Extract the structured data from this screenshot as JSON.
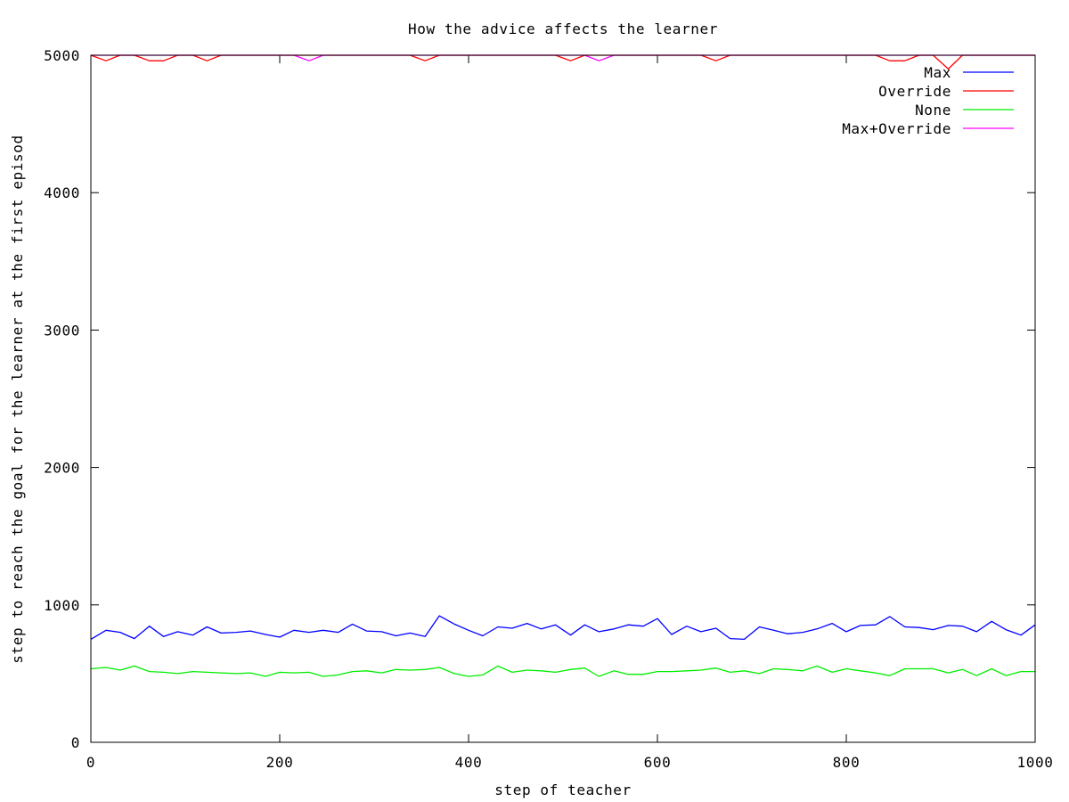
{
  "chart_data": {
    "type": "line",
    "title": "How the advice affects the learner",
    "xlabel": "step of teacher",
    "ylabel": "step to reach the goal for the learner at the first episod",
    "xlim": [
      0,
      1000
    ],
    "ylim": [
      0,
      5000
    ],
    "x_ticks": [
      0,
      200,
      400,
      600,
      800,
      1000
    ],
    "y_ticks": [
      0,
      1000,
      2000,
      3000,
      4000,
      5000
    ],
    "x_tick_labels": [
      "0",
      "200",
      "400",
      "600",
      "800",
      "1000"
    ],
    "y_tick_labels": [
      "0",
      "1000",
      "2000",
      "3000",
      "4000",
      "5000"
    ],
    "grid": false,
    "legend_position": "top-right",
    "x": [
      0,
      16,
      31,
      46,
      62,
      77,
      92,
      108,
      123,
      138,
      154,
      169,
      185,
      200,
      215,
      231,
      246,
      262,
      277,
      292,
      308,
      323,
      338,
      354,
      369,
      385,
      400,
      415,
      431,
      446,
      462,
      477,
      492,
      508,
      523,
      538,
      554,
      569,
      585,
      600,
      615,
      631,
      646,
      662,
      677,
      692,
      708,
      723,
      738,
      754,
      769,
      785,
      800,
      815,
      831,
      846,
      862,
      877,
      892,
      908,
      923,
      938,
      954,
      969,
      985,
      1000
    ],
    "series": [
      {
        "name": "Max",
        "color": "#0000ff",
        "values": [
          750,
          815,
          800,
          755,
          845,
          770,
          805,
          780,
          840,
          795,
          800,
          810,
          785,
          765,
          815,
          800,
          815,
          800,
          860,
          810,
          805,
          775,
          795,
          770,
          920,
          860,
          815,
          775,
          840,
          830,
          865,
          825,
          855,
          780,
          855,
          805,
          825,
          855,
          845,
          900,
          785,
          845,
          805,
          830,
          755,
          750,
          840,
          815,
          790,
          800,
          825,
          865,
          805,
          850,
          855,
          915,
          840,
          835,
          820,
          850,
          845,
          805,
          880,
          820,
          780,
          855
        ]
      },
      {
        "name": "Override",
        "color": "#ff0000",
        "values": [
          5000,
          4960,
          5000,
          5000,
          4960,
          4960,
          5000,
          5000,
          4960,
          5000,
          5000,
          5000,
          5000,
          5000,
          5000,
          5000,
          5000,
          5000,
          5000,
          5000,
          5000,
          5000,
          5000,
          4960,
          5000,
          5000,
          5000,
          5000,
          5000,
          5000,
          5000,
          5000,
          5000,
          4960,
          5000,
          5000,
          5000,
          5000,
          5000,
          5000,
          5000,
          5000,
          5000,
          4960,
          5000,
          5000,
          5000,
          5000,
          5000,
          5000,
          5000,
          5000,
          5000,
          5000,
          5000,
          4960,
          4960,
          5000,
          5000,
          4900,
          5000,
          5000,
          5000,
          5000,
          5000,
          5000
        ]
      },
      {
        "name": "None",
        "color": "#00ee00",
        "values": [
          535,
          545,
          525,
          555,
          515,
          510,
          500,
          515,
          510,
          505,
          500,
          505,
          480,
          510,
          505,
          510,
          480,
          490,
          515,
          520,
          505,
          530,
          525,
          530,
          545,
          500,
          480,
          490,
          555,
          510,
          525,
          520,
          510,
          530,
          540,
          480,
          520,
          495,
          495,
          515,
          515,
          520,
          525,
          540,
          510,
          520,
          500,
          535,
          530,
          520,
          555,
          510,
          535,
          520,
          505,
          485,
          535,
          535,
          535,
          505,
          530,
          485,
          535,
          485,
          515,
          515
        ]
      },
      {
        "name": "Max+Override",
        "color": "#ff00ff",
        "values": [
          5000,
          5000,
          5000,
          5000,
          5000,
          5000,
          5000,
          5000,
          5000,
          5000,
          5000,
          5000,
          5000,
          5000,
          5000,
          4960,
          5000,
          5000,
          5000,
          5000,
          5000,
          5000,
          5000,
          5000,
          5000,
          5000,
          5000,
          5000,
          5000,
          5000,
          5000,
          5000,
          5000,
          5000,
          5000,
          4960,
          5000,
          5000,
          5000,
          5000,
          5000,
          5000,
          5000,
          5000,
          5000,
          5000,
          5000,
          5000,
          5000,
          5000,
          5000,
          5000,
          5000,
          5000,
          5000,
          5000,
          5000,
          5000,
          5000,
          5000,
          5000,
          5000,
          5000,
          5000,
          5000,
          5000
        ]
      }
    ]
  }
}
